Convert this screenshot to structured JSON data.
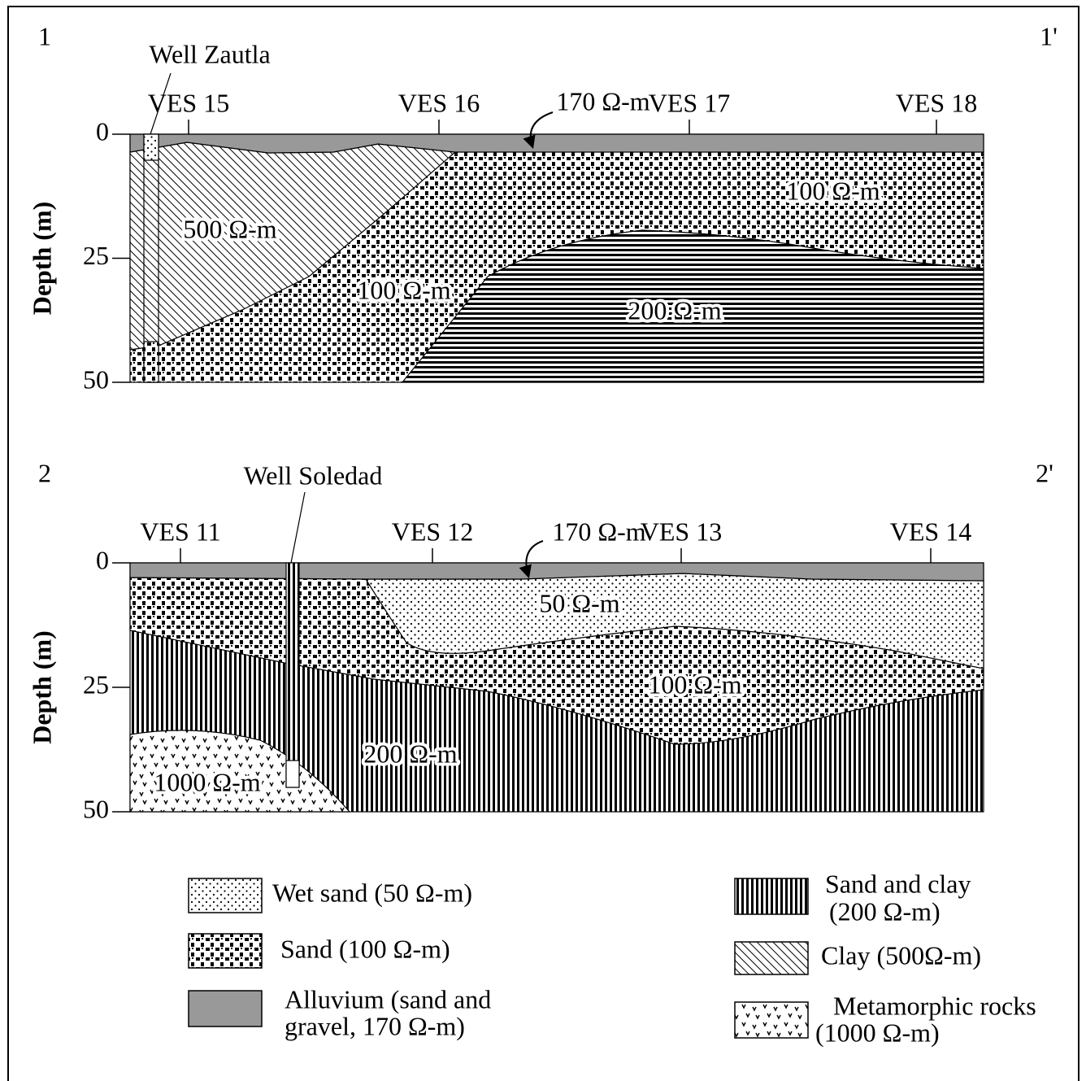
{
  "sections": [
    {
      "start_label": "1",
      "end_label": "1'",
      "well": "Well Zautla",
      "surface_label": "170 Ω-m",
      "stations": [
        "VES 15",
        "VES 16",
        "VES 17",
        "VES 18"
      ],
      "y_axis_label": "Depth (m)",
      "ylim": [
        0,
        50
      ],
      "yticks": [
        0,
        25,
        50
      ],
      "layer_labels": [
        "500 Ω-m",
        "100 Ω-m",
        "100 Ω-m",
        "200 Ω-m"
      ]
    },
    {
      "start_label": "2",
      "end_label": "2'",
      "well": "Well Soledad",
      "surface_label": "170 Ω-m",
      "stations": [
        "VES 11",
        "VES 12",
        "VES 13",
        "VES 14"
      ],
      "y_axis_label": "Depth (m)",
      "ylim": [
        0,
        50
      ],
      "yticks": [
        0,
        25,
        50
      ],
      "layer_labels": [
        "50 Ω-m",
        "100 Ω-m",
        "200 Ω-m",
        "1000 Ω-m"
      ]
    }
  ],
  "legend": [
    {
      "lines": [
        "Wet sand (50 Ω-m)"
      ]
    },
    {
      "lines": [
        "Sand (100 Ω-m)"
      ]
    },
    {
      "lines": [
        "Alluvium (sand and",
        "gravel, 170 Ω-m)"
      ]
    },
    {
      "lines": [
        "Sand and clay",
        "(200 Ω-m)"
      ]
    },
    {
      "lines": [
        "Clay (500Ω-m)"
      ]
    },
    {
      "lines": [
        "Metamorphic rocks",
        "(1000 Ω-m)"
      ]
    }
  ]
}
